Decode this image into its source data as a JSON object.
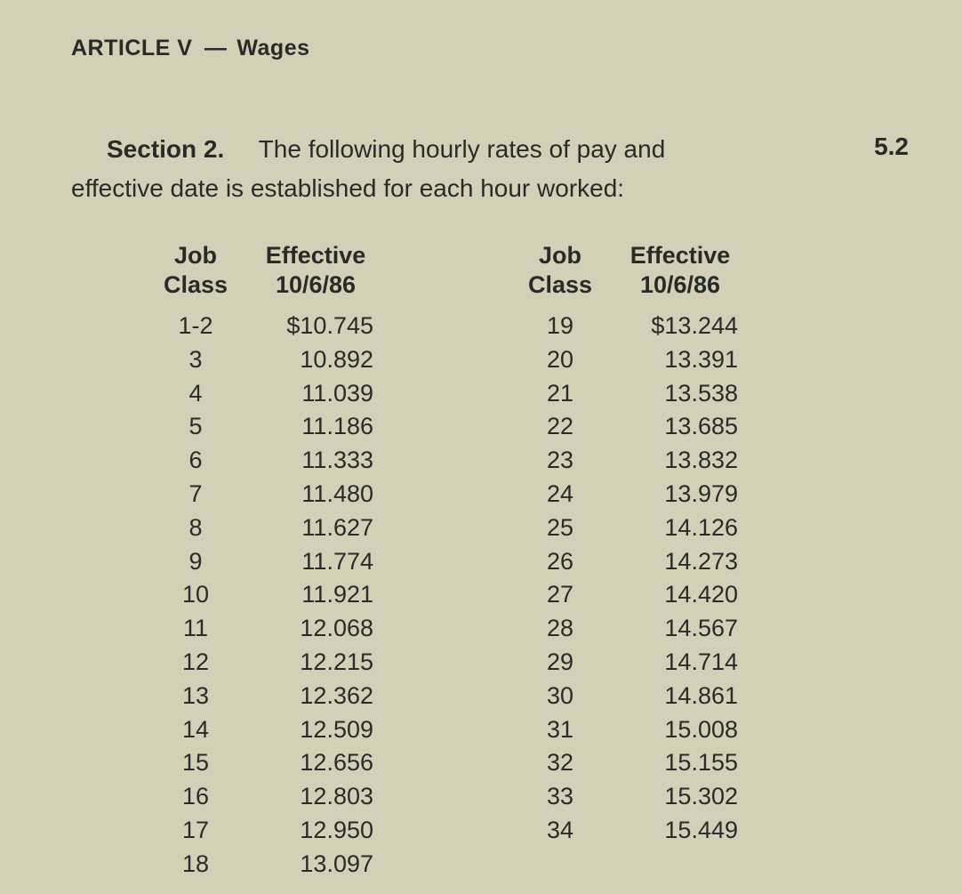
{
  "header": {
    "article": "ARTICLE V",
    "title": "Wages",
    "dash": "—"
  },
  "section": {
    "label": "Section 2.",
    "text_line1": "The following hourly rates of pay and",
    "text_line2": "effective date is established for each hour worked:",
    "number": "5.2"
  },
  "table": {
    "header_class_line1": "Job",
    "header_class_line2": "Class",
    "header_rate_line1": "Effective",
    "header_rate_line2": "10/6/86",
    "col1": [
      {
        "class": "1-2",
        "rate": "$10.745"
      },
      {
        "class": "3",
        "rate": "10.892"
      },
      {
        "class": "4",
        "rate": "11.039"
      },
      {
        "class": "5",
        "rate": "11.186"
      },
      {
        "class": "6",
        "rate": "11.333"
      },
      {
        "class": "7",
        "rate": "11.480"
      },
      {
        "class": "8",
        "rate": "11.627"
      },
      {
        "class": "9",
        "rate": "11.774"
      },
      {
        "class": "10",
        "rate": "11.921"
      },
      {
        "class": "11",
        "rate": "12.068"
      },
      {
        "class": "12",
        "rate": "12.215"
      },
      {
        "class": "13",
        "rate": "12.362"
      },
      {
        "class": "14",
        "rate": "12.509"
      },
      {
        "class": "15",
        "rate": "12.656"
      },
      {
        "class": "16",
        "rate": "12.803"
      },
      {
        "class": "17",
        "rate": "12.950"
      },
      {
        "class": "18",
        "rate": "13.097"
      }
    ],
    "col2": [
      {
        "class": "19",
        "rate": "$13.244"
      },
      {
        "class": "20",
        "rate": "13.391"
      },
      {
        "class": "21",
        "rate": "13.538"
      },
      {
        "class": "22",
        "rate": "13.685"
      },
      {
        "class": "23",
        "rate": "13.832"
      },
      {
        "class": "24",
        "rate": "13.979"
      },
      {
        "class": "25",
        "rate": "14.126"
      },
      {
        "class": "26",
        "rate": "14.273"
      },
      {
        "class": "27",
        "rate": "14.420"
      },
      {
        "class": "28",
        "rate": "14.567"
      },
      {
        "class": "29",
        "rate": "14.714"
      },
      {
        "class": "30",
        "rate": "14.861"
      },
      {
        "class": "31",
        "rate": "15.008"
      },
      {
        "class": "32",
        "rate": "15.155"
      },
      {
        "class": "33",
        "rate": "15.302"
      },
      {
        "class": "34",
        "rate": "15.449"
      }
    ]
  },
  "style": {
    "background_color": "#d4d0b8",
    "text_color": "#2a2a28",
    "header_fontsize": 25,
    "body_fontsize": 28,
    "table_fontsize": 27
  }
}
